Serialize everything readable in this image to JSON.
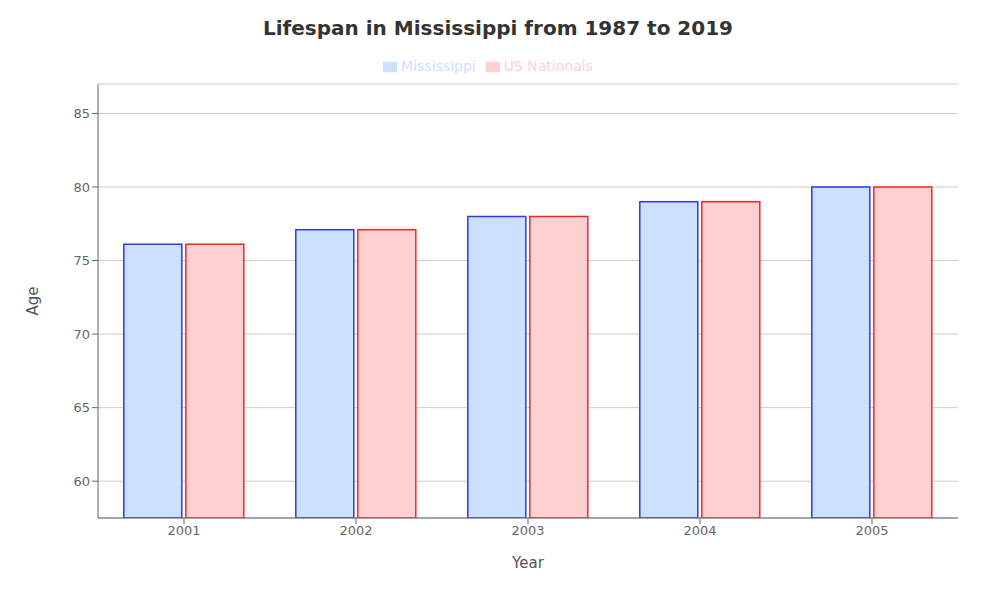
{
  "chart_data": {
    "type": "bar",
    "title": "Lifespan in Mississippi from 1987 to 2019",
    "x_label": "Year",
    "y_label": "Age",
    "categories": [
      "2001",
      "2002",
      "2003",
      "2004",
      "2005"
    ],
    "series": [
      {
        "name": "Mississippi",
        "color": "#cce0ff",
        "values": [
          76.1,
          77.1,
          78.0,
          79.0,
          80.0
        ]
      },
      {
        "name": "US Nationals",
        "color": "#ffd0d0",
        "values": [
          76.1,
          77.1,
          78.0,
          79.0,
          80.0
        ]
      }
    ],
    "ylim": [
      57.5,
      87
    ],
    "yticks": [
      60,
      65,
      70,
      75,
      80,
      85
    ],
    "grid": true,
    "legend": "top"
  }
}
